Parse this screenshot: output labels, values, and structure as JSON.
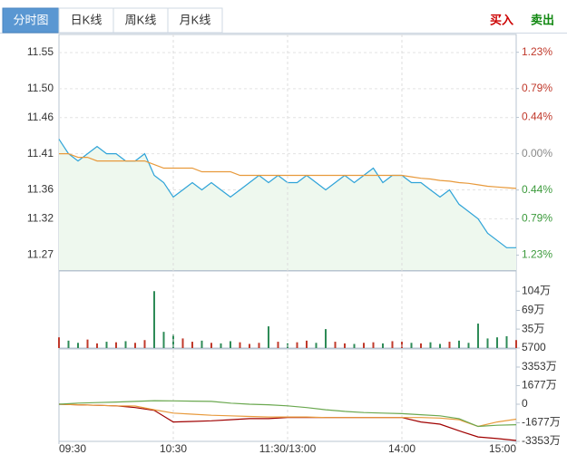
{
  "tabs": [
    "分时图",
    "日K线",
    "周K线",
    "月K线"
  ],
  "buttons": {
    "buy": "买入",
    "sell": "卖出"
  },
  "chart_data": [
    {
      "type": "line",
      "xlim": [
        0,
        240
      ],
      "ylim": [
        11.249,
        11.575
      ],
      "yticks": [
        11.55,
        {
          "value": 11.5,
          "label": "11.50"
        },
        11.46,
        11.41,
        11.36,
        11.32,
        11.27
      ],
      "y2lim": [
        -1.411,
        1.446
      ],
      "y2ticks": [
        {
          "value": 1.23,
          "label": "1.23%"
        },
        {
          "value": 0.79,
          "label": "0.79%"
        },
        {
          "value": 0.44,
          "label": "0.44%"
        },
        {
          "value": 0,
          "label": "0.00%"
        },
        {
          "value": -0.44,
          "label": "0.44%"
        },
        {
          "value": -0.79,
          "label": "0.79%"
        },
        {
          "value": -1.23,
          "label": "1.23%"
        }
      ],
      "x": [
        0,
        5,
        10,
        15,
        20,
        25,
        30,
        35,
        40,
        45,
        50,
        55,
        60,
        65,
        70,
        75,
        80,
        85,
        90,
        95,
        100,
        105,
        110,
        115,
        120,
        125,
        130,
        135,
        140,
        145,
        150,
        155,
        160,
        165,
        170,
        175,
        180,
        185,
        190,
        195,
        200,
        205,
        210,
        215,
        220,
        225,
        230,
        235,
        240
      ],
      "series": [
        {
          "color": "#2ea3d8",
          "fill": "#eef8ee",
          "values": [
            11.43,
            11.41,
            11.4,
            11.41,
            11.42,
            11.41,
            11.41,
            11.4,
            11.4,
            11.41,
            11.38,
            11.37,
            11.35,
            11.36,
            11.37,
            11.36,
            11.37,
            11.36,
            11.35,
            11.36,
            11.37,
            11.38,
            11.37,
            11.38,
            11.37,
            11.37,
            11.38,
            11.37,
            11.36,
            11.37,
            11.38,
            11.37,
            11.38,
            11.39,
            11.37,
            11.38,
            11.38,
            11.37,
            11.37,
            11.36,
            11.35,
            11.36,
            11.34,
            11.33,
            11.32,
            11.3,
            11.29,
            11.28,
            11.28
          ]
        },
        {
          "color": "#e89a3c",
          "values": [
            11.41,
            11.41,
            11.405,
            11.405,
            11.4,
            11.4,
            11.4,
            11.4,
            11.4,
            11.4,
            11.395,
            11.39,
            11.39,
            11.39,
            11.39,
            11.385,
            11.385,
            11.385,
            11.385,
            11.38,
            11.38,
            11.38,
            11.38,
            11.38,
            11.38,
            11.38,
            11.38,
            11.38,
            11.38,
            11.38,
            11.38,
            11.38,
            11.38,
            11.38,
            11.38,
            11.38,
            11.38,
            11.378,
            11.376,
            11.375,
            11.373,
            11.372,
            11.37,
            11.369,
            11.367,
            11.365,
            11.364,
            11.363,
            11.362
          ]
        }
      ],
      "grid": true
    },
    {
      "type": "bar",
      "xlim": [
        0,
        240
      ],
      "ylim": [
        0.57,
        140.7
      ],
      "yticks": [
        {
          "value": 104,
          "label": "104万"
        },
        {
          "value": 69,
          "label": "69万"
        },
        {
          "value": 35,
          "label": "35万"
        },
        {
          "value": 0.57,
          "label": "5700"
        }
      ],
      "x": [
        0,
        5,
        10,
        15,
        20,
        25,
        30,
        35,
        40,
        45,
        50,
        55,
        60,
        65,
        70,
        75,
        80,
        85,
        90,
        95,
        100,
        105,
        110,
        115,
        120,
        125,
        130,
        135,
        140,
        145,
        150,
        155,
        160,
        165,
        170,
        175,
        180,
        185,
        190,
        195,
        200,
        205,
        210,
        215,
        220,
        225,
        230,
        235,
        240
      ],
      "up_color": "#c0392b",
      "down_color": "#2e8b57",
      "values": [
        20,
        14,
        10,
        16,
        9,
        12,
        11,
        13,
        10,
        15,
        104,
        30,
        25,
        18,
        12,
        14,
        10,
        9,
        13,
        11,
        8,
        10,
        40,
        12,
        9,
        11,
        14,
        10,
        35,
        12,
        9,
        8,
        10,
        11,
        9,
        13,
        12,
        10,
        9,
        11,
        8,
        12,
        14,
        10,
        45,
        18,
        20,
        22,
        15
      ]
    },
    {
      "type": "line",
      "xlim": [
        0,
        240
      ],
      "ylim": [
        -3353,
        4989
      ],
      "yticks": [
        {
          "value": 3353,
          "label": "3353万"
        },
        {
          "value": 1677,
          "label": "1677万"
        },
        0,
        {
          "value": -1677,
          "label": "-1677万"
        },
        {
          "value": -3353,
          "label": "-3353万"
        }
      ],
      "xticks": [
        {
          "value": 0,
          "label": "09:30"
        },
        {
          "value": 60,
          "label": "10:30"
        },
        {
          "value": 120,
          "label": "11:30/13:00"
        },
        {
          "value": 180,
          "label": "14:00"
        },
        {
          "value": 240,
          "label": "15:00"
        }
      ],
      "x": [
        0,
        10,
        20,
        30,
        40,
        50,
        60,
        70,
        80,
        90,
        100,
        110,
        120,
        130,
        140,
        150,
        160,
        170,
        180,
        190,
        200,
        210,
        220,
        230,
        240
      ],
      "series": [
        {
          "color": "#a00000",
          "values": [
            0,
            -50,
            -100,
            -150,
            -300,
            -560,
            -1600,
            -1550,
            -1500,
            -1400,
            -1300,
            -1300,
            -1200,
            -1200,
            -1200,
            -1200,
            -1200,
            -1200,
            -1200,
            -1600,
            -1800,
            -2400,
            -2950,
            -3100,
            -3270
          ]
        },
        {
          "color": "#e89a3c",
          "values": [
            0,
            -50,
            -100,
            -150,
            -160,
            -500,
            -800,
            -900,
            -1000,
            -1050,
            -1100,
            -1150,
            -1150,
            -1150,
            -1200,
            -1200,
            -1200,
            -1200,
            -1200,
            -1200,
            -1250,
            -1400,
            -2000,
            -1600,
            -1350
          ]
        },
        {
          "color": "#6aa84f",
          "values": [
            0,
            100,
            150,
            200,
            250,
            320,
            300,
            280,
            250,
            100,
            0,
            -50,
            -150,
            -300,
            -500,
            -650,
            -750,
            -800,
            -850,
            -950,
            -1050,
            -1300,
            -2000,
            -1900,
            -1850
          ]
        }
      ]
    }
  ]
}
